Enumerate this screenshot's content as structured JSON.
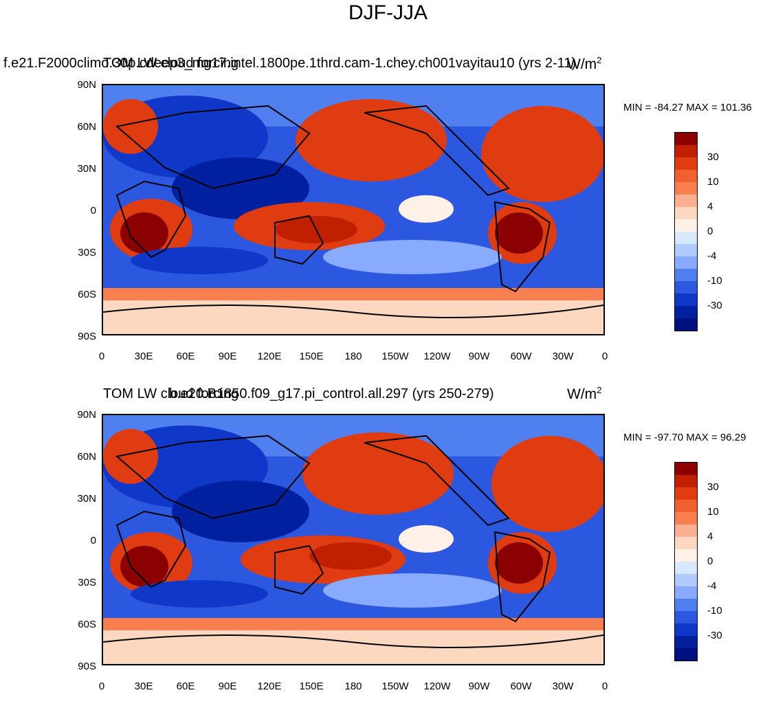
{
  "page_title": "DJF-JJA",
  "colorbar": {
    "colors": [
      "#8b0000",
      "#c02000",
      "#e03c12",
      "#f06030",
      "#f88050",
      "#fab090",
      "#fcd8c0",
      "#fff0e8",
      "#d8e8ff",
      "#b0ccff",
      "#88aaff",
      "#5080f0",
      "#2c58e0",
      "#1038c8",
      "#0020a0",
      "#001080"
    ],
    "labels": [
      "30",
      "10",
      "4",
      "0",
      "-4",
      "-10",
      "-30"
    ]
  },
  "panels": [
    {
      "model_title": "f.e21.F2000climo.30p.cdeep3_mg17.intel.1800pe.1thrd.cam-1.chey.ch001vayitau10 (yrs 2-11)",
      "variable_title": "TOM LW cloud forcing",
      "units_base": "W/m",
      "units_exp": "2",
      "minmax": "MIN = -84.27 MAX = 101.36"
    },
    {
      "model_title": "b.e20.B1850.f09_g17.pi_control.all.297 (yrs 250-279)",
      "variable_title": "TOM LW cloud forcing",
      "units_base": "W/m",
      "units_exp": "2",
      "minmax": "MIN = -97.70 MAX =  96.29"
    }
  ],
  "axes": {
    "y_labels": [
      "90N",
      "60N",
      "30N",
      "0",
      "30S",
      "60S",
      "90S"
    ],
    "x_labels": [
      "0",
      "30E",
      "60E",
      "90E",
      "120E",
      "150E",
      "180",
      "150W",
      "120W",
      "90W",
      "60W",
      "30W",
      "0"
    ]
  }
}
